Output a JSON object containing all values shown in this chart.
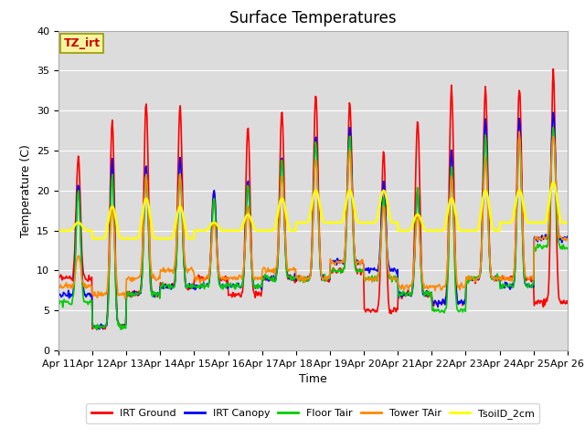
{
  "title": "Surface Temperatures",
  "xlabel": "Time",
  "ylabel": "Temperature (C)",
  "ylim": [
    0,
    40
  ],
  "plot_bg_color": "#dcdcdc",
  "fig_bg_color": "#ffffff",
  "series": {
    "IRT Ground": {
      "color": "#ff0000",
      "lw": 1.2
    },
    "IRT Canopy": {
      "color": "#0000ff",
      "lw": 1.2
    },
    "Floor Tair": {
      "color": "#00cc00",
      "lw": 1.2
    },
    "Tower TAir": {
      "color": "#ff8800",
      "lw": 1.2
    },
    "TsoilD_2cm": {
      "color": "#ffff00",
      "lw": 1.8
    }
  },
  "annotation_text": "TZ_irt",
  "annotation_color": "#cc0000",
  "annotation_bg": "#f5f5a0",
  "annotation_border": "#999900",
  "yticks": [
    0,
    5,
    10,
    15,
    20,
    25,
    30,
    35,
    40
  ],
  "grid_color": "#ffffff",
  "tick_fontsize": 8,
  "title_fontsize": 12,
  "label_fontsize": 9,
  "legend_fontsize": 8
}
